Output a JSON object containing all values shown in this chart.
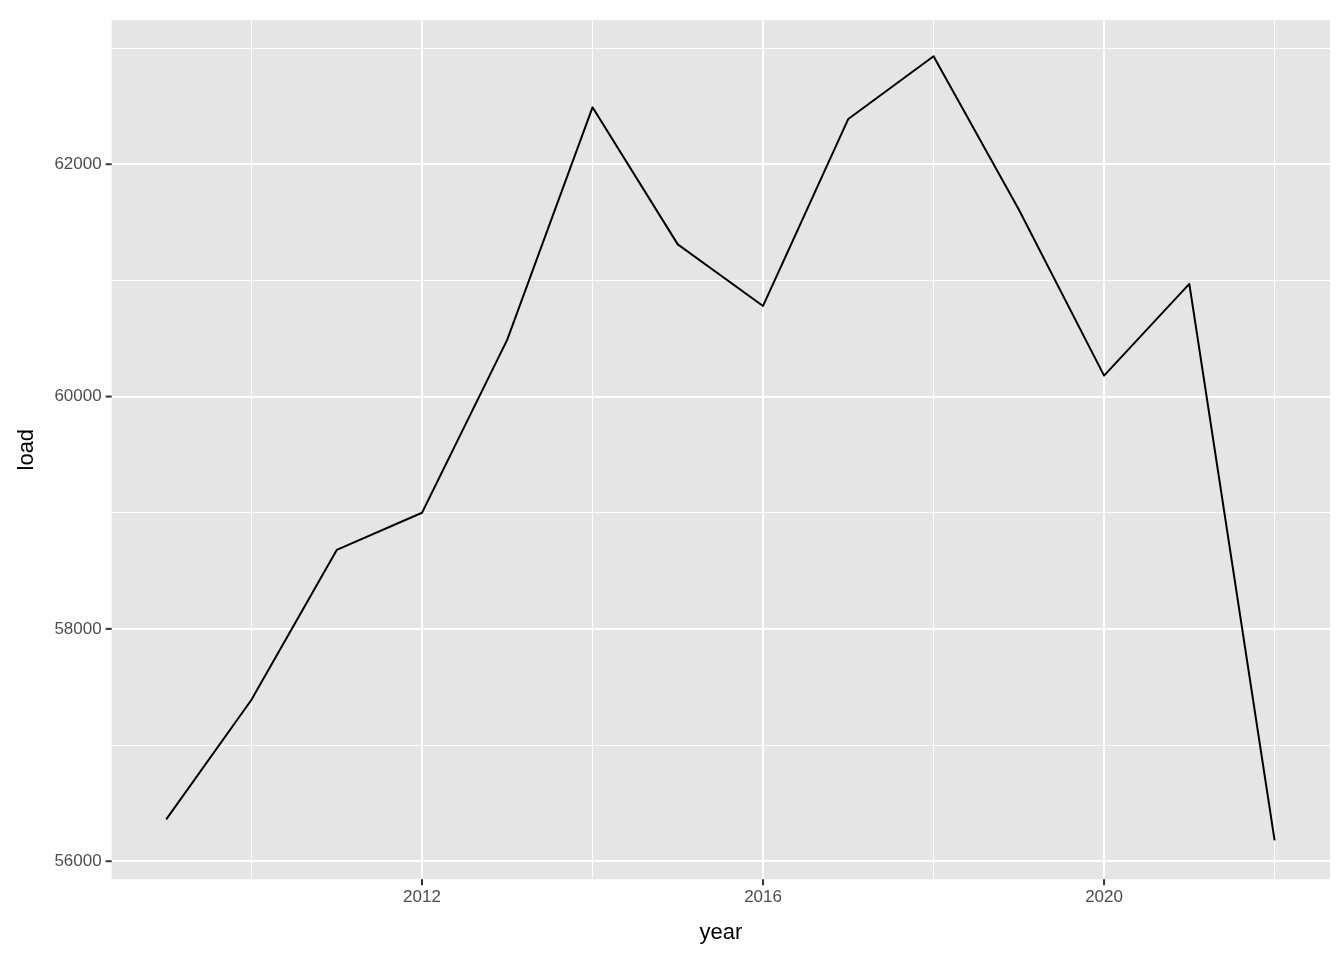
{
  "chart_data": {
    "type": "line",
    "xlabel": "year",
    "ylabel": "load",
    "x": [
      2009,
      2010,
      2011,
      2012,
      2013,
      2014,
      2015,
      2016,
      2017,
      2018,
      2019,
      2020,
      2021,
      2022
    ],
    "series": [
      {
        "color": "#000000",
        "values": [
          56360,
          57390,
          58680,
          59000,
          60490,
          62490,
          61310,
          60780,
          62390,
          62930,
          61610,
          60180,
          60970,
          56180
        ]
      }
    ],
    "xlim": [
      2008.36,
      2022.65
    ],
    "ylim": [
      55845,
      63240
    ],
    "xticks": [
      {
        "value": 2010,
        "label": null
      },
      2012,
      {
        "value": 2014,
        "label": null
      },
      2016,
      {
        "value": 2018,
        "label": null
      },
      2020,
      {
        "value": 2022,
        "label": null
      }
    ],
    "yticks": [
      56000,
      {
        "value": 57000,
        "label": null
      },
      58000,
      {
        "value": 59000,
        "label": null
      },
      60000,
      {
        "value": 61000,
        "label": null
      },
      62000,
      {
        "value": 63000,
        "label": null
      }
    ],
    "grid": true,
    "legend": false,
    "marker": "none",
    "line_style": "solid"
  }
}
